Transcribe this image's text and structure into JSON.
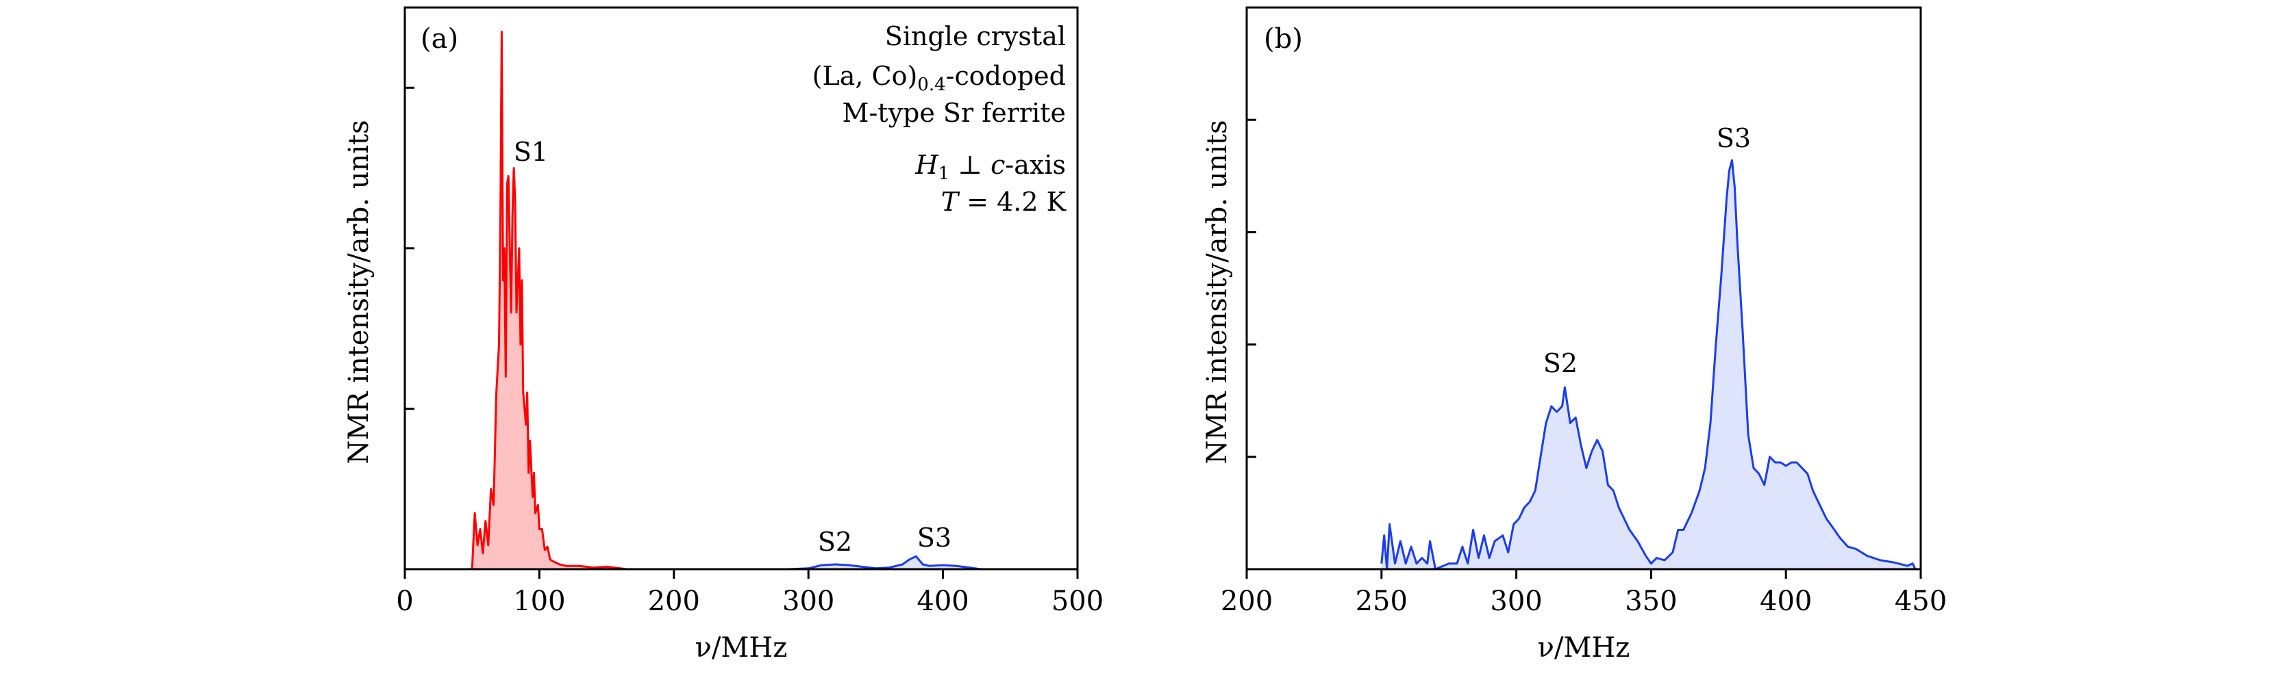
{
  "chart_data": [
    {
      "type": "area",
      "panel_label": "(a)",
      "xlabel": "ν/MHz",
      "ylabel": "NMR intensity/arb. units",
      "xlim": [
        0,
        500
      ],
      "ylim": [
        0,
        3.5
      ],
      "xticks": [
        0,
        100,
        200,
        300,
        400,
        500
      ],
      "xtick_labels": [
        "0",
        "100",
        "200",
        "300",
        "400",
        "500"
      ],
      "yticks": [
        0,
        1,
        2,
        3
      ],
      "grid": false,
      "annotation": {
        "line1": "Single crystal",
        "line2_a": "(La, Co)",
        "line2_sub": "0.4",
        "line2_b": "-codoped",
        "line3": "M-type Sr ferrite",
        "line4_H": "H",
        "line4_sub": "1",
        "line4_perp": " ⊥ ",
        "line4_c": "c",
        "line4_rest": "-axis",
        "line5_T": "T",
        "line5_rest": " = 4.2 K"
      },
      "peak_labels": [
        {
          "text": "S1",
          "x": 82
        },
        {
          "text": "S2",
          "x": 316
        },
        {
          "text": "S3",
          "x": 390
        }
      ],
      "series": [
        {
          "color": "#ff0000",
          "fill": "#ffc2c2",
          "points": [
            [
              50,
              0
            ],
            [
              52,
              0.35
            ],
            [
              54,
              0.15
            ],
            [
              56,
              0.25
            ],
            [
              58,
              0.1
            ],
            [
              60,
              0.3
            ],
            [
              62,
              0.15
            ],
            [
              64,
              0.5
            ],
            [
              66,
              0.4
            ],
            [
              68,
              1.1
            ],
            [
              70,
              1.4
            ],
            [
              71,
              2.1
            ],
            [
              72,
              3.35
            ],
            [
              73,
              1.8
            ],
            [
              74,
              2.0
            ],
            [
              75,
              1.2
            ],
            [
              76,
              2.4
            ],
            [
              77,
              2.45
            ],
            [
              78,
              2.0
            ],
            [
              79,
              1.6
            ],
            [
              80,
              2.2
            ],
            [
              81,
              2.5
            ],
            [
              82,
              2.3
            ],
            [
              83,
              1.6
            ],
            [
              85,
              2.0
            ],
            [
              86,
              1.4
            ],
            [
              87,
              1.8
            ],
            [
              88,
              1.1
            ],
            [
              90,
              0.9
            ],
            [
              91,
              1.1
            ],
            [
              92,
              0.6
            ],
            [
              93,
              0.8
            ],
            [
              95,
              0.45
            ],
            [
              96,
              0.6
            ],
            [
              97,
              0.35
            ],
            [
              99,
              0.4
            ],
            [
              100,
              0.25
            ],
            [
              102,
              0.25
            ],
            [
              104,
              0.12
            ],
            [
              106,
              0.14
            ],
            [
              108,
              0.06
            ],
            [
              110,
              0.05
            ],
            [
              115,
              0.03
            ],
            [
              120,
              0.02
            ],
            [
              130,
              0.02
            ],
            [
              140,
              0.01
            ],
            [
              150,
              0.015
            ],
            [
              160,
              0.005
            ],
            [
              165,
              0
            ]
          ]
        },
        {
          "color": "#1a3cf0",
          "fill": "#dde4fb",
          "points": [
            [
              285,
              0
            ],
            [
              300,
              0.005
            ],
            [
              310,
              0.025
            ],
            [
              320,
              0.03
            ],
            [
              330,
              0.025
            ],
            [
              340,
              0.015
            ],
            [
              350,
              0.005
            ],
            [
              360,
              0.01
            ],
            [
              370,
              0.03
            ],
            [
              375,
              0.06
            ],
            [
              380,
              0.08
            ],
            [
              385,
              0.03
            ],
            [
              390,
              0.02
            ],
            [
              400,
              0.025
            ],
            [
              410,
              0.02
            ],
            [
              420,
              0.01
            ],
            [
              428,
              0
            ]
          ]
        }
      ]
    },
    {
      "type": "area",
      "panel_label": "(b)",
      "xlabel": "ν/MHz",
      "ylabel": "NMR intensity/arb. units",
      "xlim": [
        200,
        450
      ],
      "ylim": [
        0,
        5
      ],
      "xticks": [
        200,
        250,
        300,
        350,
        400,
        450
      ],
      "xtick_labels": [
        "200",
        "250",
        "300",
        "350",
        "400",
        "450"
      ],
      "yticks": [
        0,
        1,
        2,
        3,
        4
      ],
      "grid": false,
      "peak_labels": [
        {
          "text": "S2",
          "x": 314
        },
        {
          "text": "S3",
          "x": 377
        }
      ],
      "series": [
        {
          "color": "#1a3cf0",
          "fill": "#dde4fb",
          "points": [
            [
              250,
              0.05
            ],
            [
              251,
              0.3
            ],
            [
              252,
              0
            ],
            [
              253,
              0.4
            ],
            [
              255,
              0.05
            ],
            [
              257,
              0.25
            ],
            [
              259,
              0.05
            ],
            [
              261,
              0.2
            ],
            [
              263,
              0.05
            ],
            [
              265,
              0.1
            ],
            [
              267,
              0.05
            ],
            [
              268,
              0.25
            ],
            [
              270,
              0
            ],
            [
              275,
              0.05
            ],
            [
              278,
              0.05
            ],
            [
              280,
              0.2
            ],
            [
              282,
              0.05
            ],
            [
              284,
              0.35
            ],
            [
              286,
              0.1
            ],
            [
              288,
              0.3
            ],
            [
              290,
              0.1
            ],
            [
              292,
              0.25
            ],
            [
              295,
              0.3
            ],
            [
              297,
              0.15
            ],
            [
              299,
              0.4
            ],
            [
              301,
              0.45
            ],
            [
              303,
              0.55
            ],
            [
              305,
              0.6
            ],
            [
              307,
              0.7
            ],
            [
              309,
              1.0
            ],
            [
              311,
              1.3
            ],
            [
              313,
              1.45
            ],
            [
              315,
              1.4
            ],
            [
              317,
              1.45
            ],
            [
              318,
              1.62
            ],
            [
              320,
              1.3
            ],
            [
              322,
              1.35
            ],
            [
              324,
              1.1
            ],
            [
              326,
              0.9
            ],
            [
              328,
              1.05
            ],
            [
              330,
              1.15
            ],
            [
              332,
              1.05
            ],
            [
              334,
              0.75
            ],
            [
              336,
              0.7
            ],
            [
              338,
              0.55
            ],
            [
              340,
              0.45
            ],
            [
              342,
              0.35
            ],
            [
              345,
              0.25
            ],
            [
              348,
              0.12
            ],
            [
              350,
              0.05
            ],
            [
              352,
              0.1
            ],
            [
              355,
              0.08
            ],
            [
              358,
              0.15
            ],
            [
              360,
              0.35
            ],
            [
              362,
              0.35
            ],
            [
              365,
              0.5
            ],
            [
              368,
              0.7
            ],
            [
              370,
              0.9
            ],
            [
              372,
              1.3
            ],
            [
              374,
              2.0
            ],
            [
              376,
              2.6
            ],
            [
              378,
              3.3
            ],
            [
              379,
              3.55
            ],
            [
              380,
              3.64
            ],
            [
              381,
              3.4
            ],
            [
              382,
              2.9
            ],
            [
              384,
              2.1
            ],
            [
              386,
              1.2
            ],
            [
              388,
              0.9
            ],
            [
              390,
              0.85
            ],
            [
              392,
              0.75
            ],
            [
              394,
              1.0
            ],
            [
              396,
              0.95
            ],
            [
              398,
              0.95
            ],
            [
              400,
              0.92
            ],
            [
              402,
              0.95
            ],
            [
              404,
              0.95
            ],
            [
              406,
              0.9
            ],
            [
              408,
              0.85
            ],
            [
              410,
              0.7
            ],
            [
              412,
              0.6
            ],
            [
              415,
              0.45
            ],
            [
              418,
              0.35
            ],
            [
              420,
              0.28
            ],
            [
              423,
              0.2
            ],
            [
              426,
              0.18
            ],
            [
              430,
              0.12
            ],
            [
              435,
              0.08
            ],
            [
              440,
              0.06
            ],
            [
              445,
              0.03
            ],
            [
              447,
              0.05
            ],
            [
              448,
              0
            ]
          ]
        }
      ]
    }
  ]
}
